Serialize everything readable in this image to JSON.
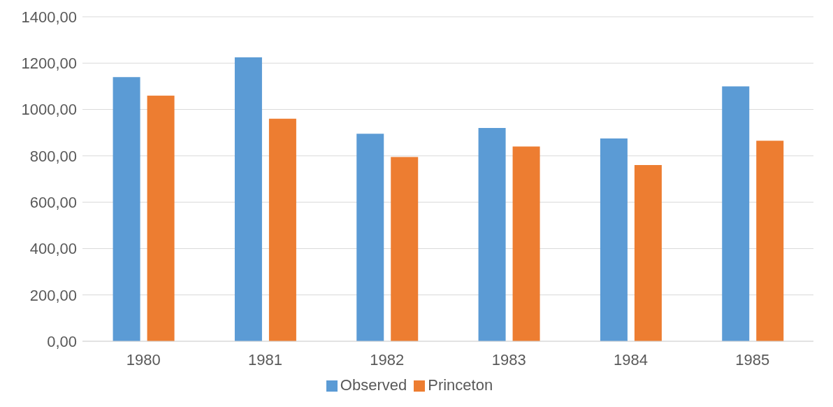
{
  "chart_data": {
    "type": "bar",
    "categories": [
      "1980",
      "1981",
      "1982",
      "1983",
      "1984",
      "1985"
    ],
    "series": [
      {
        "name": "Observed",
        "color": "#5b9bd5",
        "values": [
          1140,
          1225,
          895,
          920,
          875,
          1100
        ]
      },
      {
        "name": "Princeton",
        "color": "#ed7d31",
        "values": [
          1060,
          960,
          795,
          840,
          760,
          865
        ]
      }
    ],
    "ylim": [
      0,
      1400
    ],
    "yticks": [
      {
        "value": 0,
        "label": "0,00"
      },
      {
        "value": 200,
        "label": "200,00"
      },
      {
        "value": 400,
        "label": "400,00"
      },
      {
        "value": 600,
        "label": "600,00"
      },
      {
        "value": 800,
        "label": "800,00"
      },
      {
        "value": 1000,
        "label": "1000,00"
      },
      {
        "value": 1200,
        "label": "1200,00"
      },
      {
        "value": 1400,
        "label": "1400,00"
      }
    ],
    "grid": "y",
    "legend": "bottom"
  }
}
